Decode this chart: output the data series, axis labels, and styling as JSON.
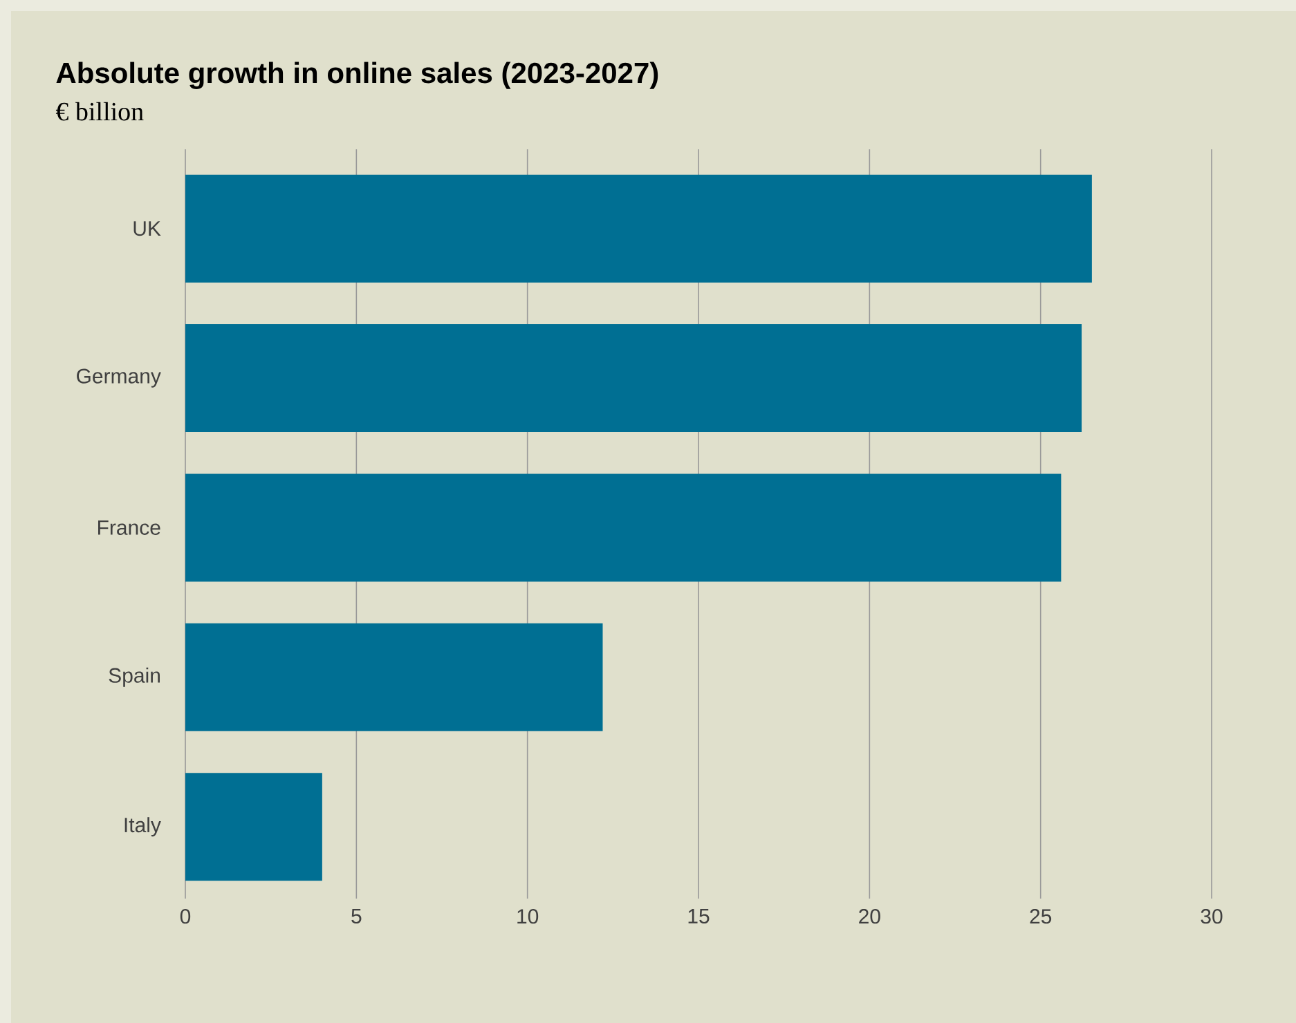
{
  "chart_data": {
    "type": "bar",
    "orientation": "horizontal",
    "title": "Absolute growth in online sales (2023-2027)",
    "subtitle": "€ billion",
    "categories": [
      "UK",
      "Germany",
      "France",
      "Spain",
      "Italy"
    ],
    "values": [
      26.5,
      26.2,
      25.6,
      12.2,
      4.0
    ],
    "color": "#006f93",
    "xlim": [
      0,
      30
    ],
    "xticks": [
      0,
      5,
      10,
      15,
      20,
      25,
      30
    ],
    "grid": "x"
  }
}
